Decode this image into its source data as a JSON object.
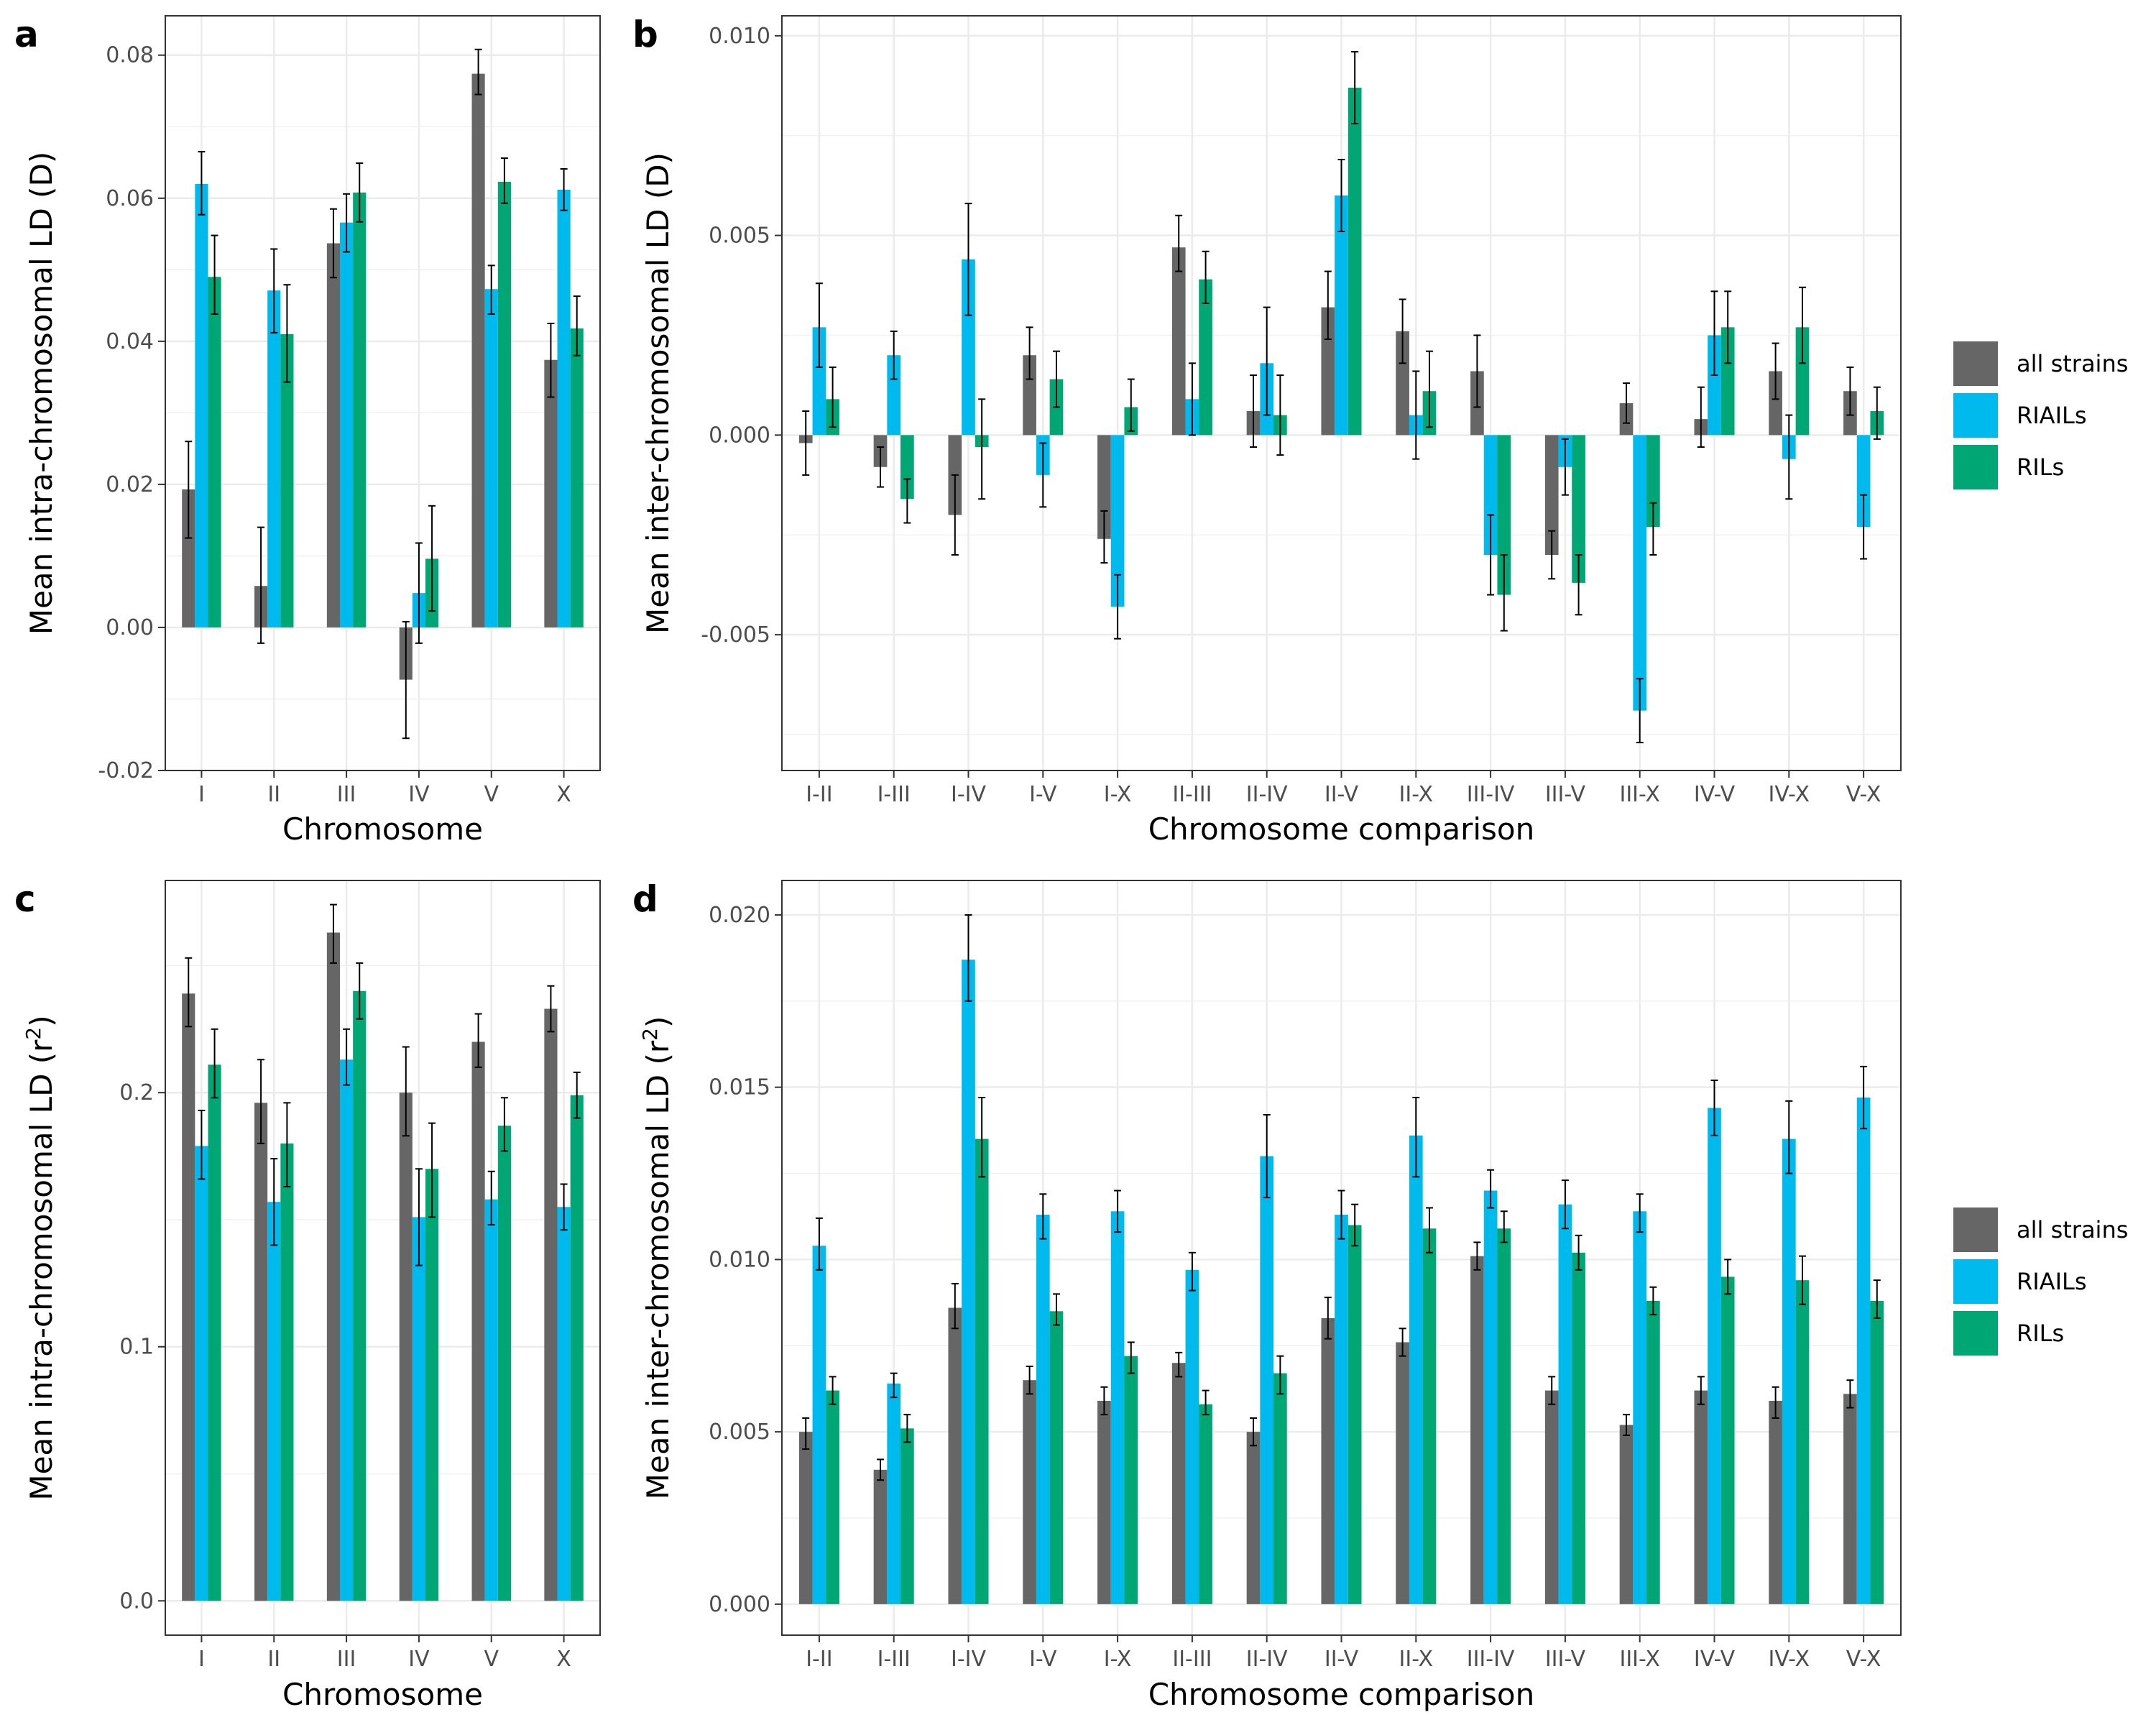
{
  "colors": {
    "all_strains": "#666666",
    "riails": "#00BAEE",
    "rils": "#00A775"
  },
  "chart_data": [
    {
      "panel": "a",
      "type": "bar",
      "xlabel": "Chromosome",
      "ylabel": "Mean intra-chromosomal LD (D)",
      "ylim": [
        -0.02,
        0.0855
      ],
      "yticks": [
        -0.02,
        0.0,
        0.02,
        0.04,
        0.06,
        0.08
      ],
      "ytick_labels": [
        "-0.02",
        "0.00",
        "0.02",
        "0.04",
        "0.06",
        "0.08"
      ],
      "categories": [
        "I",
        "II",
        "III",
        "IV",
        "V",
        "X"
      ],
      "series": [
        {
          "key": "all_strains",
          "values": [
            0.0193,
            0.0058,
            0.0537,
            -0.0073,
            0.0774,
            0.0374
          ],
          "err_lo": [
            0.0125,
            -0.0022,
            0.0489,
            -0.0155,
            0.0745,
            0.0322
          ],
          "err_hi": [
            0.026,
            0.014,
            0.0585,
            0.0008,
            0.0808,
            0.0425
          ]
        },
        {
          "key": "riails",
          "values": [
            0.062,
            0.0471,
            0.0566,
            0.0048,
            0.0473,
            0.0612
          ],
          "err_lo": [
            0.0577,
            0.0412,
            0.0525,
            -0.0022,
            0.0438,
            0.0583
          ],
          "err_hi": [
            0.0665,
            0.0529,
            0.0606,
            0.0118,
            0.0506,
            0.0641
          ]
        },
        {
          "key": "rils",
          "values": [
            0.049,
            0.041,
            0.0608,
            0.0096,
            0.0623,
            0.0418
          ],
          "err_lo": [
            0.0438,
            0.0343,
            0.0567,
            0.0023,
            0.0593,
            0.038
          ],
          "err_hi": [
            0.0548,
            0.0479,
            0.0649,
            0.017,
            0.0656,
            0.0463
          ]
        }
      ]
    },
    {
      "panel": "b",
      "type": "bar",
      "xlabel": "Chromosome comparison",
      "ylabel": "Mean inter-chromosomal LD (D)",
      "ylim": [
        -0.0084,
        0.0105
      ],
      "yticks": [
        -0.005,
        0.0,
        0.005,
        0.01
      ],
      "ytick_labels": [
        "-0.005",
        "0.000",
        "0.005",
        "0.010"
      ],
      "categories": [
        "I-II",
        "I-III",
        "I-IV",
        "I-V",
        "I-X",
        "II-III",
        "II-IV",
        "II-V",
        "II-X",
        "III-IV",
        "III-V",
        "III-X",
        "IV-V",
        "IV-X",
        "V-X"
      ],
      "series": [
        {
          "key": "all_strains",
          "values": [
            -0.0002,
            -0.0008,
            -0.002,
            0.002,
            -0.0026,
            0.0047,
            0.0006,
            0.0032,
            0.0026,
            0.0016,
            -0.003,
            0.0008,
            0.0004,
            0.0016,
            0.0011
          ],
          "err_lo": [
            -0.001,
            -0.0013,
            -0.003,
            0.0014,
            -0.0032,
            0.0041,
            -0.0003,
            0.0024,
            0.0018,
            0.0007,
            -0.0036,
            0.0003,
            -0.0003,
            0.0009,
            0.0005
          ],
          "err_hi": [
            0.0006,
            -0.0003,
            -0.001,
            0.0027,
            -0.0019,
            0.0055,
            0.0015,
            0.0041,
            0.0034,
            0.0025,
            -0.0024,
            0.0013,
            0.0012,
            0.0023,
            0.0017
          ]
        },
        {
          "key": "riails",
          "values": [
            0.0027,
            0.002,
            0.0044,
            -0.001,
            -0.0043,
            0.0009,
            0.0018,
            0.006,
            0.0005,
            -0.003,
            -0.0008,
            -0.0069,
            0.0025,
            -0.0006,
            -0.0023
          ],
          "err_lo": [
            0.0017,
            0.0014,
            0.003,
            -0.0018,
            -0.0051,
            0.0,
            0.0005,
            0.0051,
            -0.0006,
            -0.004,
            -0.0015,
            -0.0077,
            0.0015,
            -0.0016,
            -0.0031
          ],
          "err_hi": [
            0.0038,
            0.0026,
            0.0058,
            -0.0002,
            -0.0035,
            0.0018,
            0.0032,
            0.0069,
            0.0016,
            -0.002,
            -0.0001,
            -0.0061,
            0.0036,
            0.0005,
            -0.0015
          ]
        },
        {
          "key": "rils",
          "values": [
            0.0009,
            -0.0016,
            -0.0003,
            0.0014,
            0.0007,
            0.0039,
            0.0005,
            0.0087,
            0.0011,
            -0.004,
            -0.0037,
            -0.0023,
            0.0027,
            0.0027,
            0.0006
          ],
          "err_lo": [
            0.0002,
            -0.0022,
            -0.0016,
            0.0007,
            0.0001,
            0.0033,
            -0.0005,
            0.0078,
            0.0002,
            -0.0049,
            -0.0045,
            -0.003,
            0.0018,
            0.0018,
            -0.0001
          ],
          "err_hi": [
            0.0017,
            -0.0011,
            0.0009,
            0.0021,
            0.0014,
            0.0046,
            0.0015,
            0.0096,
            0.0021,
            -0.003,
            -0.003,
            -0.0017,
            0.0036,
            0.0037,
            0.0012
          ]
        }
      ]
    },
    {
      "panel": "c",
      "type": "bar",
      "xlabel": "Chromosome",
      "ylabel": "Mean intra-chromosomal LD (r",
      "ylabel_sup": "2",
      "ylabel_end": ")",
      "ylim": [
        -0.0135,
        0.2835
      ],
      "yticks": [
        0.0,
        0.1,
        0.2
      ],
      "ytick_labels": [
        "0.0",
        "0.1",
        "0.2"
      ],
      "categories": [
        "I",
        "II",
        "III",
        "IV",
        "V",
        "X"
      ],
      "series": [
        {
          "key": "all_strains",
          "values": [
            0.239,
            0.196,
            0.263,
            0.2,
            0.22,
            0.233
          ],
          "err_lo": [
            0.226,
            0.18,
            0.251,
            0.183,
            0.21,
            0.224
          ],
          "err_hi": [
            0.253,
            0.213,
            0.274,
            0.218,
            0.231,
            0.242
          ]
        },
        {
          "key": "riails",
          "values": [
            0.179,
            0.157,
            0.213,
            0.151,
            0.158,
            0.155
          ],
          "err_lo": [
            0.166,
            0.14,
            0.203,
            0.132,
            0.148,
            0.146
          ],
          "err_hi": [
            0.193,
            0.174,
            0.225,
            0.17,
            0.169,
            0.164
          ]
        },
        {
          "key": "rils",
          "values": [
            0.211,
            0.18,
            0.24,
            0.17,
            0.187,
            0.199
          ],
          "err_lo": [
            0.198,
            0.163,
            0.229,
            0.151,
            0.177,
            0.19
          ],
          "err_hi": [
            0.225,
            0.196,
            0.251,
            0.188,
            0.198,
            0.208
          ]
        }
      ]
    },
    {
      "panel": "d",
      "type": "bar",
      "xlabel": "Chromosome comparison",
      "ylabel": "Mean inter-chromosomal LD (r",
      "ylabel_sup": "2",
      "ylabel_end": ")",
      "ylim": [
        -0.0009,
        0.021
      ],
      "yticks": [
        0.0,
        0.005,
        0.01,
        0.015,
        0.02
      ],
      "ytick_labels": [
        "0.000",
        "0.005",
        "0.010",
        "0.015",
        "0.020"
      ],
      "categories": [
        "I-II",
        "I-III",
        "I-IV",
        "I-V",
        "I-X",
        "II-III",
        "II-IV",
        "II-V",
        "II-X",
        "III-IV",
        "III-V",
        "III-X",
        "IV-V",
        "IV-X",
        "V-X"
      ],
      "series": [
        {
          "key": "all_strains",
          "values": [
            0.005,
            0.0039,
            0.0086,
            0.0065,
            0.0059,
            0.007,
            0.005,
            0.0083,
            0.0076,
            0.0101,
            0.0062,
            0.0052,
            0.0062,
            0.0059,
            0.0061
          ],
          "err_lo": [
            0.0045,
            0.0036,
            0.008,
            0.0061,
            0.0055,
            0.0066,
            0.0046,
            0.0077,
            0.0072,
            0.0097,
            0.0058,
            0.0049,
            0.0058,
            0.0054,
            0.0057
          ],
          "err_hi": [
            0.0054,
            0.0042,
            0.0093,
            0.0069,
            0.0063,
            0.0073,
            0.0054,
            0.0089,
            0.008,
            0.0105,
            0.0066,
            0.0055,
            0.0066,
            0.0063,
            0.0065
          ]
        },
        {
          "key": "riails",
          "values": [
            0.0104,
            0.0064,
            0.0187,
            0.0113,
            0.0114,
            0.0097,
            0.013,
            0.0113,
            0.0136,
            0.012,
            0.0116,
            0.0114,
            0.0144,
            0.0135,
            0.0147
          ],
          "err_lo": [
            0.0097,
            0.006,
            0.0175,
            0.0106,
            0.0108,
            0.0091,
            0.0118,
            0.0106,
            0.0124,
            0.0115,
            0.0109,
            0.0108,
            0.0136,
            0.0125,
            0.0138
          ],
          "err_hi": [
            0.0112,
            0.0067,
            0.02,
            0.0119,
            0.012,
            0.0102,
            0.0142,
            0.012,
            0.0147,
            0.0126,
            0.0123,
            0.0119,
            0.0152,
            0.0146,
            0.0156
          ]
        },
        {
          "key": "rils",
          "values": [
            0.0062,
            0.0051,
            0.0135,
            0.0085,
            0.0072,
            0.0058,
            0.0067,
            0.011,
            0.0109,
            0.0109,
            0.0102,
            0.0088,
            0.0095,
            0.0094,
            0.0088
          ],
          "err_lo": [
            0.0058,
            0.0047,
            0.0124,
            0.0081,
            0.0067,
            0.0055,
            0.0061,
            0.0104,
            0.0102,
            0.0105,
            0.0097,
            0.0084,
            0.009,
            0.0087,
            0.0083
          ],
          "err_hi": [
            0.0066,
            0.0055,
            0.0147,
            0.009,
            0.0076,
            0.0062,
            0.0072,
            0.0116,
            0.0115,
            0.0114,
            0.0107,
            0.0092,
            0.01,
            0.0101,
            0.0094
          ]
        }
      ]
    }
  ],
  "panel_labels": [
    "a",
    "b",
    "c",
    "d"
  ],
  "legends": [
    {
      "items": [
        {
          "key": "all_strains",
          "label": "all strains"
        },
        {
          "key": "riails",
          "label": "RIAILs"
        },
        {
          "key": "rils",
          "label": "RILs"
        }
      ]
    },
    {
      "items": [
        {
          "key": "all_strains",
          "label": "all strains"
        },
        {
          "key": "riails",
          "label": "RIAILs"
        },
        {
          "key": "rils",
          "label": "RILs"
        }
      ]
    }
  ]
}
